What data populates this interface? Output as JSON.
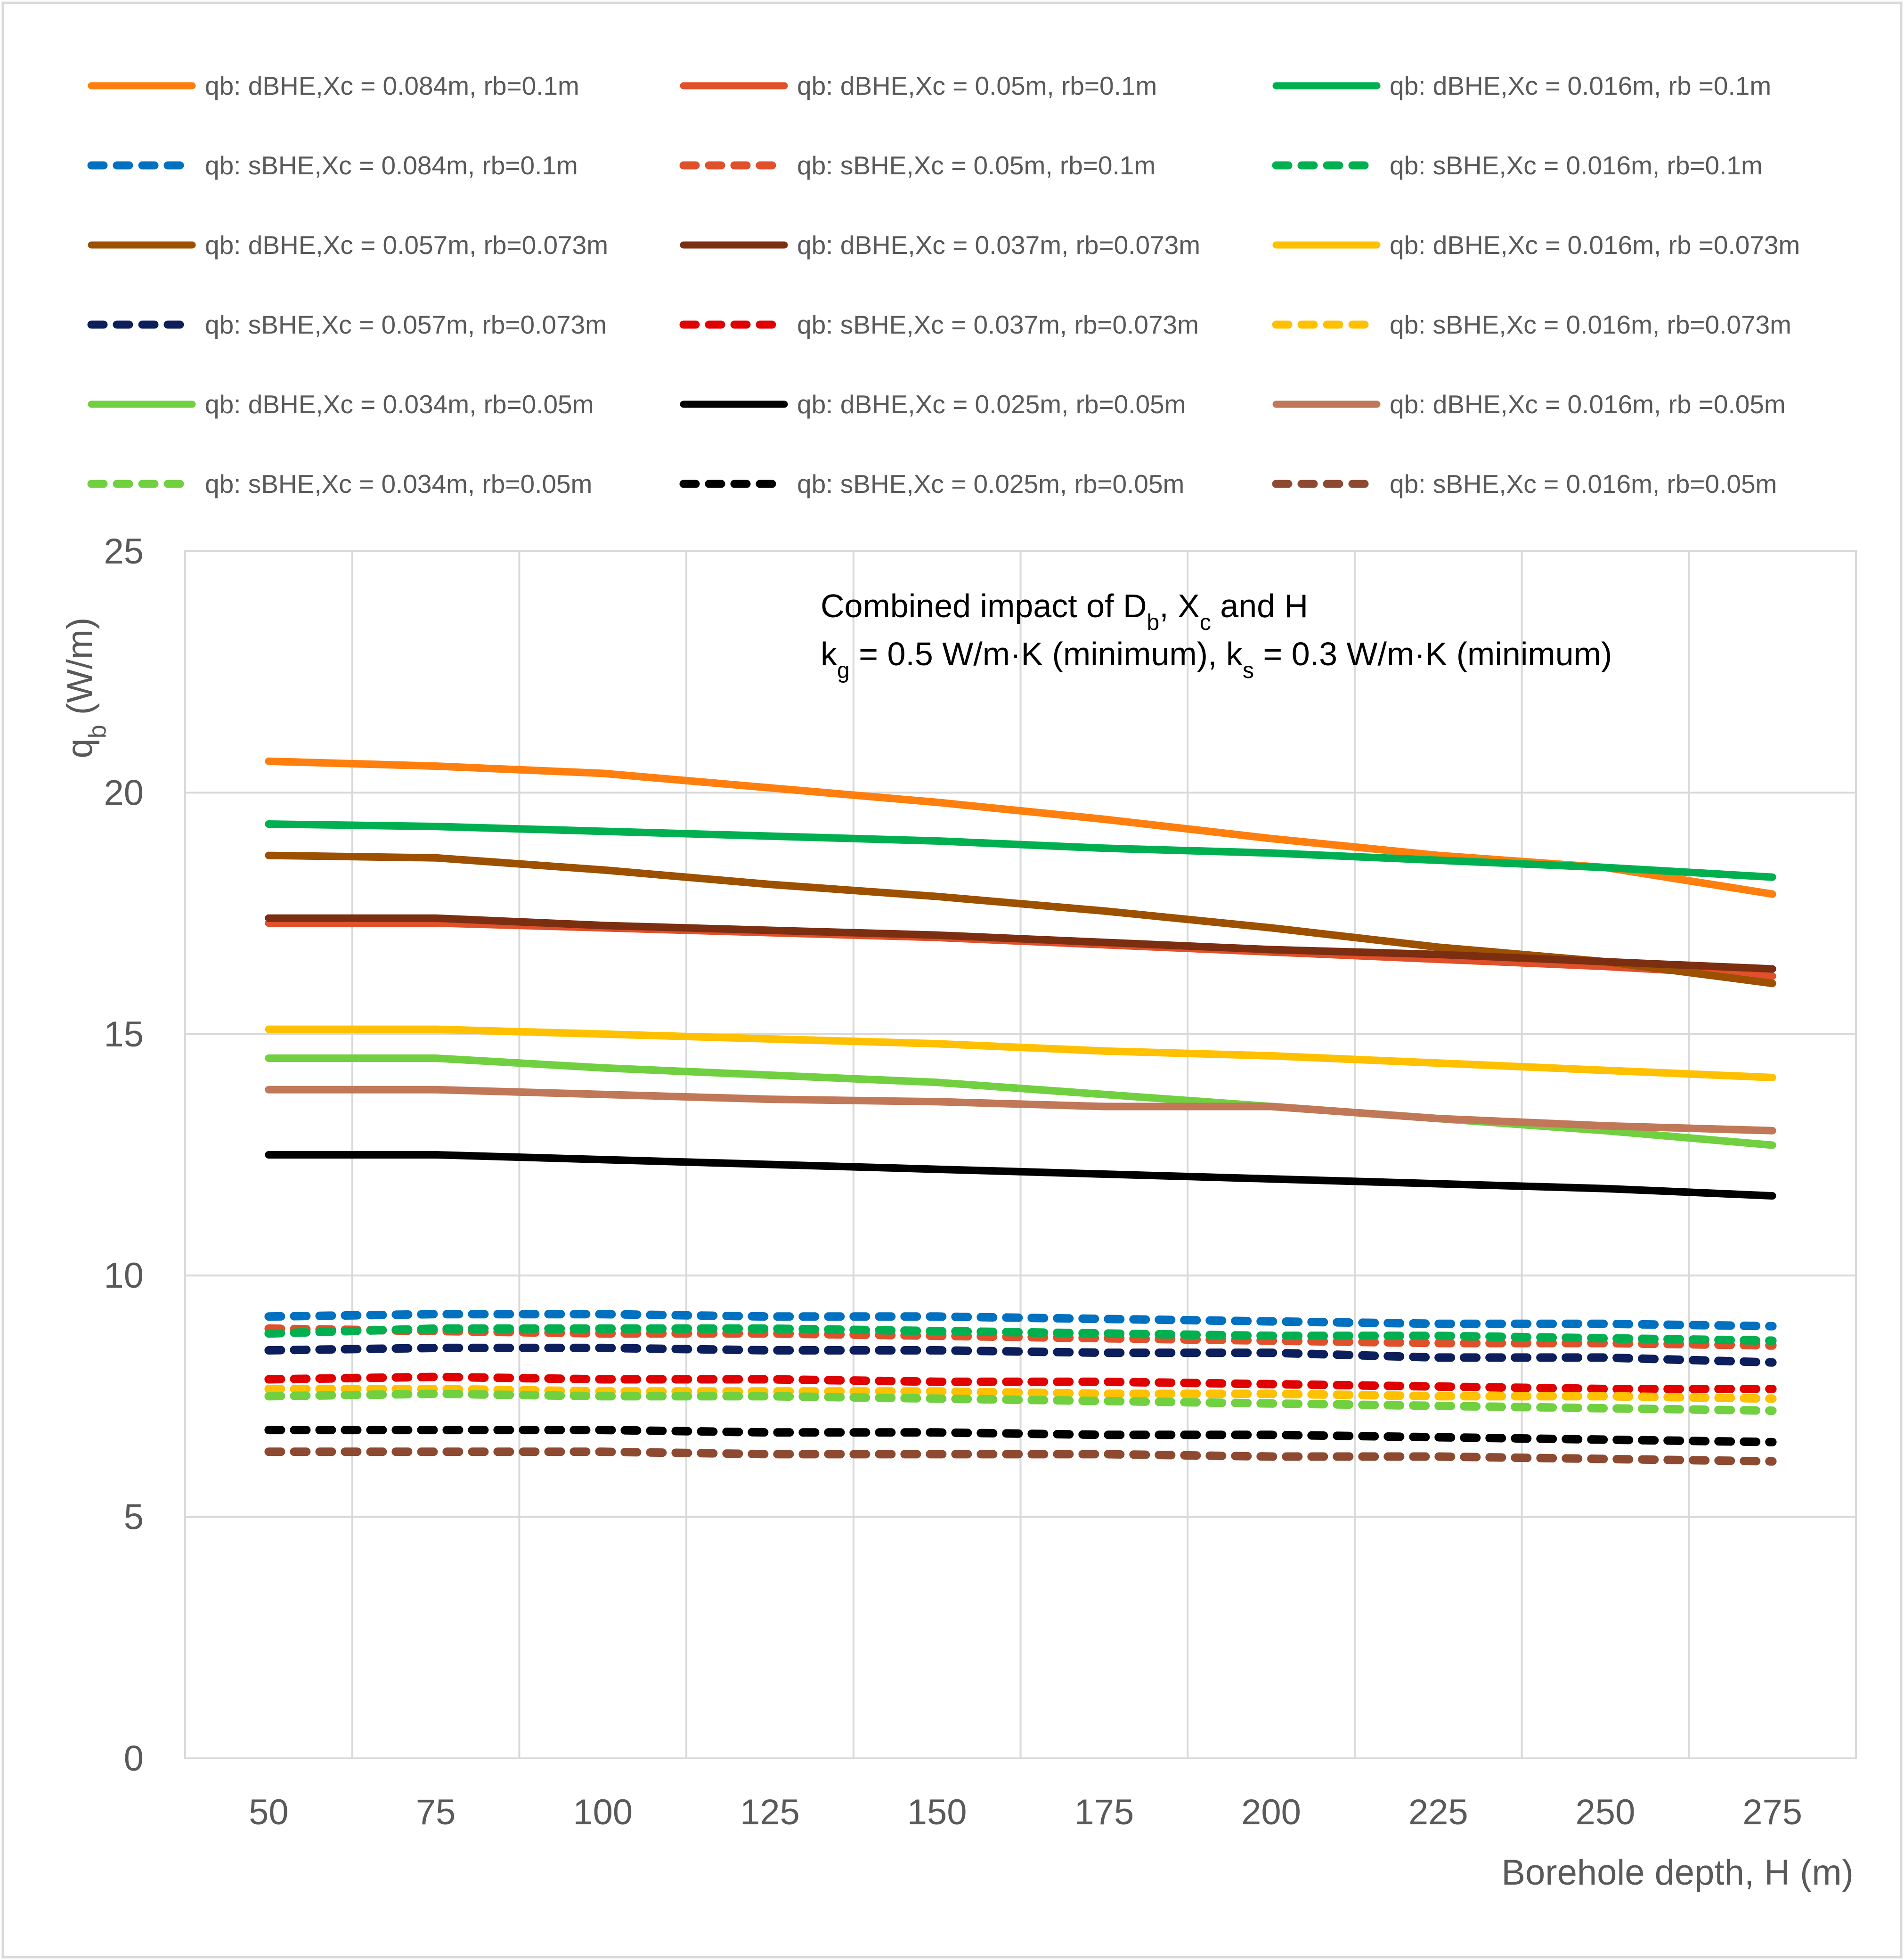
{
  "chart_data": {
    "type": "line",
    "xlabel": "Borehole depth, H (m)",
    "ylabel_main": "q",
    "ylabel_sub": "b",
    "ylabel_unit": " (W/m)",
    "ylim": [
      0,
      25
    ],
    "x": [
      50,
      75,
      100,
      125,
      150,
      175,
      200,
      225,
      250,
      275
    ],
    "xticks": [
      "50",
      "75",
      "100",
      "125",
      "150",
      "175",
      "200",
      "225",
      "250",
      "275"
    ],
    "yticks": [
      "0",
      "5",
      "10",
      "15",
      "20",
      "25"
    ],
    "annotation": {
      "l1_a": "Combined impact of D",
      "l1_b": "b",
      "l1_c": ", X",
      "l1_d": "c",
      "l1_e": "  and H",
      "l2_a": "k",
      "l2_b": "g",
      "l2_c": " = 0.5 W/m·K (minimum), k",
      "l2_d": "s",
      "l2_e": " = 0.3 W/m·K (minimum)"
    },
    "series": [
      {
        "name": "qb: dBHE,Xc = 0.084m, rb=0.1m",
        "color": "#FF7F0E",
        "dash": false,
        "values": [
          20.65,
          20.55,
          20.4,
          20.1,
          19.8,
          19.45,
          19.05,
          18.7,
          18.45,
          17.9
        ]
      },
      {
        "name": "qb: dBHE,Xc = 0.05m, rb=0.1m",
        "color": "#E0502A",
        "dash": false,
        "values": [
          17.3,
          17.3,
          17.2,
          17.1,
          17.0,
          16.85,
          16.7,
          16.55,
          16.4,
          16.2
        ]
      },
      {
        "name": "qb: dBHE,Xc = 0.016m, rb =0.1m",
        "color": "#00B050",
        "dash": false,
        "values": [
          19.35,
          19.3,
          19.2,
          19.1,
          19.0,
          18.85,
          18.75,
          18.6,
          18.45,
          18.25
        ]
      },
      {
        "name": "qb: sBHE,Xc = 0.084m, rb=0.1m",
        "color": "#0070C0",
        "dash": true,
        "values": [
          9.15,
          9.2,
          9.2,
          9.15,
          9.15,
          9.1,
          9.05,
          9.0,
          9.0,
          8.95
        ]
      },
      {
        "name": "qb: sBHE,Xc = 0.05m, rb=0.1m",
        "color": "#E0502A",
        "dash": true,
        "values": [
          8.9,
          8.85,
          8.8,
          8.8,
          8.75,
          8.7,
          8.65,
          8.6,
          8.6,
          8.55
        ]
      },
      {
        "name": "qb: sBHE,Xc = 0.016m, rb=0.1m",
        "color": "#00B050",
        "dash": true,
        "values": [
          8.8,
          8.9,
          8.9,
          8.9,
          8.85,
          8.8,
          8.75,
          8.75,
          8.7,
          8.65
        ]
      },
      {
        "name": "qb: dBHE,Xc = 0.057m, rb=0.073m",
        "color": "#9C5000",
        "dash": false,
        "values": [
          18.7,
          18.65,
          18.4,
          18.1,
          17.85,
          17.55,
          17.2,
          16.8,
          16.5,
          16.05
        ]
      },
      {
        "name": "qb: dBHE,Xc = 0.037m, rb=0.073m",
        "color": "#7B2E10",
        "dash": false,
        "values": [
          17.4,
          17.4,
          17.25,
          17.15,
          17.05,
          16.9,
          16.75,
          16.65,
          16.5,
          16.35
        ]
      },
      {
        "name": "qb: dBHE,Xc = 0.016m, rb =0.073m",
        "color": "#FFC000",
        "dash": false,
        "values": [
          15.1,
          15.1,
          15.0,
          14.9,
          14.8,
          14.65,
          14.55,
          14.4,
          14.25,
          14.1
        ]
      },
      {
        "name": "qb: sBHE,Xc = 0.057m, rb=0.073m",
        "color": "#0C1E5C",
        "dash": true,
        "values": [
          8.45,
          8.5,
          8.5,
          8.45,
          8.45,
          8.4,
          8.4,
          8.3,
          8.3,
          8.2
        ]
      },
      {
        "name": "qb: sBHE,Xc = 0.037m, rb=0.073m",
        "color": "#E00000",
        "dash": true,
        "values": [
          7.85,
          7.9,
          7.85,
          7.85,
          7.8,
          7.8,
          7.75,
          7.7,
          7.65,
          7.65
        ]
      },
      {
        "name": "qb: sBHE,Xc = 0.016m, rb=0.073m",
        "color": "#FFC000",
        "dash": true,
        "values": [
          7.65,
          7.65,
          7.6,
          7.6,
          7.6,
          7.55,
          7.55,
          7.5,
          7.5,
          7.45
        ]
      },
      {
        "name": "qb: dBHE,Xc = 0.034m, rb=0.05m",
        "color": "#70D040",
        "dash": false,
        "values": [
          14.5,
          14.5,
          14.3,
          14.15,
          14.0,
          13.75,
          13.5,
          13.25,
          13.0,
          12.7
        ]
      },
      {
        "name": "qb: dBHE,Xc = 0.025m, rb=0.05m",
        "color": "#000000",
        "dash": false,
        "values": [
          12.5,
          12.5,
          12.4,
          12.3,
          12.2,
          12.1,
          12.0,
          11.9,
          11.8,
          11.65
        ]
      },
      {
        "name": "qb: dBHE,Xc = 0.016m, rb =0.05m",
        "color": "#C07858",
        "dash": false,
        "values": [
          13.85,
          13.85,
          13.75,
          13.65,
          13.6,
          13.5,
          13.5,
          13.25,
          13.1,
          13.0
        ]
      },
      {
        "name": "qb: sBHE,Xc = 0.034m, rb=0.05m",
        "color": "#70D040",
        "dash": true,
        "values": [
          7.5,
          7.55,
          7.5,
          7.5,
          7.45,
          7.4,
          7.35,
          7.3,
          7.25,
          7.2
        ]
      },
      {
        "name": "qb: sBHE,Xc = 0.025m, rb=0.05m",
        "color": "#000000",
        "dash": true,
        "values": [
          6.8,
          6.8,
          6.8,
          6.75,
          6.75,
          6.7,
          6.7,
          6.65,
          6.6,
          6.55
        ]
      },
      {
        "name": "qb: sBHE,Xc = 0.016m, rb=0.05m",
        "color": "#8E4A30",
        "dash": true,
        "values": [
          6.35,
          6.35,
          6.35,
          6.3,
          6.3,
          6.3,
          6.25,
          6.25,
          6.2,
          6.15
        ]
      }
    ]
  }
}
